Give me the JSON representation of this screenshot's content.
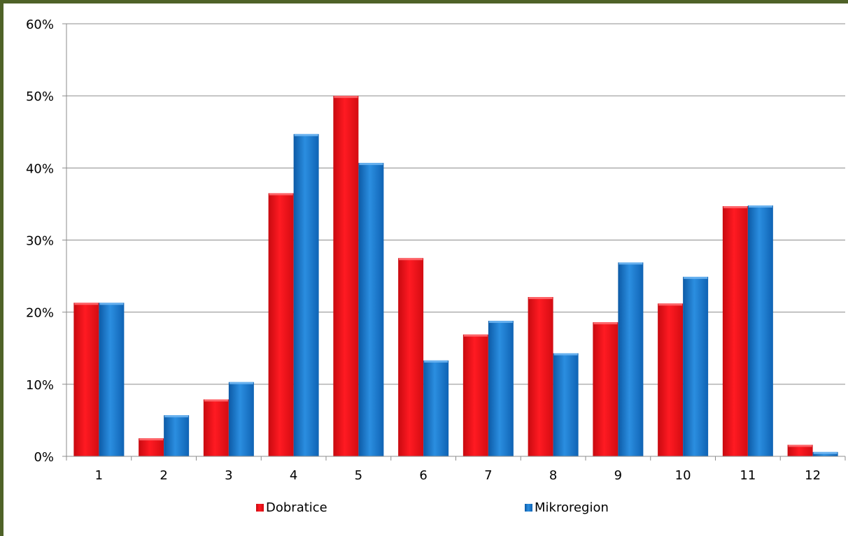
{
  "chart_data": {
    "type": "bar",
    "title": "",
    "xlabel": "",
    "ylabel": "",
    "categories": [
      "1",
      "2",
      "3",
      "4",
      "5",
      "6",
      "7",
      "8",
      "9",
      "10",
      "11",
      "12"
    ],
    "series": [
      {
        "name": "Dobratice",
        "color": "#e8131a",
        "values": [
          21.3,
          2.5,
          7.9,
          36.5,
          50.0,
          27.5,
          16.9,
          22.1,
          18.6,
          21.2,
          34.7,
          1.6
        ]
      },
      {
        "name": "Mikroregion",
        "color": "#1f77c8",
        "values": [
          21.3,
          5.7,
          10.3,
          44.7,
          40.7,
          13.3,
          18.8,
          14.3,
          26.9,
          24.9,
          34.8,
          0.6
        ]
      }
    ],
    "ylim": [
      0,
      60
    ],
    "yticks": [
      "0%",
      "10%",
      "20%",
      "30%",
      "40%",
      "50%",
      "60%"
    ],
    "ytick_values": [
      0,
      10,
      20,
      30,
      40,
      50,
      60
    ],
    "grid": true,
    "legend_position": "bottom"
  }
}
